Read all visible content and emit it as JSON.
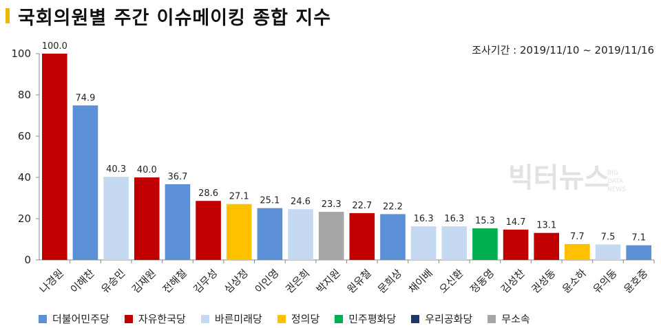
{
  "title": "국회의원별 주간 이슈메이킹 종합 지수",
  "accent_color": "#f2b705",
  "period_label": "조사기간 : 2019/11/10 ~ 2019/11/16",
  "watermark": "빅터뉴스 BIG DATA NEWS",
  "parties": [
    {
      "name": "더불어민주당",
      "color": "#5b8fd6"
    },
    {
      "name": "자유한국당",
      "color": "#c00000"
    },
    {
      "name": "바른미래당",
      "color": "#c5d9f0"
    },
    {
      "name": "정의당",
      "color": "#ffc000"
    },
    {
      "name": "민주평화당",
      "color": "#00b050"
    },
    {
      "name": "우리공화당",
      "color": "#1f3864"
    },
    {
      "name": "무소속",
      "color": "#a6a6a6"
    }
  ],
  "chart_data": {
    "type": "bar",
    "categories": [
      "나경원",
      "이해찬",
      "유승민",
      "김재원",
      "전해철",
      "김무성",
      "심상정",
      "이인영",
      "권은희",
      "박지원",
      "원유철",
      "문희상",
      "채이배",
      "오신환",
      "정동영",
      "김성찬",
      "권성동",
      "윤소하",
      "유의동",
      "윤호중"
    ],
    "values": [
      100.0,
      74.9,
      40.3,
      40.0,
      36.7,
      28.6,
      27.1,
      25.1,
      24.6,
      23.3,
      22.7,
      22.2,
      16.3,
      16.3,
      15.3,
      14.7,
      13.1,
      7.7,
      7.5,
      7.1
    ],
    "value_labels": [
      "100.0",
      "74.9",
      "40.3",
      "40.0",
      "36.7",
      "28.6",
      "27.1",
      "25.1",
      "24.6",
      "23.3",
      "22.7",
      "22.2",
      "16.3",
      "16.3",
      "15.3",
      "14.7",
      "13.1",
      "7.7",
      "7.5",
      "7.1"
    ],
    "bar_colors": [
      "#c00000",
      "#5b8fd6",
      "#c5d9f0",
      "#c00000",
      "#5b8fd6",
      "#c00000",
      "#ffc000",
      "#5b8fd6",
      "#c5d9f0",
      "#a6a6a6",
      "#c00000",
      "#5b8fd6",
      "#c5d9f0",
      "#c5d9f0",
      "#00b050",
      "#c00000",
      "#c00000",
      "#ffc000",
      "#c5d9f0",
      "#5b8fd6"
    ],
    "yticks": [
      "0",
      "20",
      "40",
      "60",
      "80",
      "100"
    ],
    "ylim": [
      0,
      100
    ],
    "grid": false,
    "legend_position": "bottom",
    "xlabel": "",
    "ylabel": ""
  }
}
